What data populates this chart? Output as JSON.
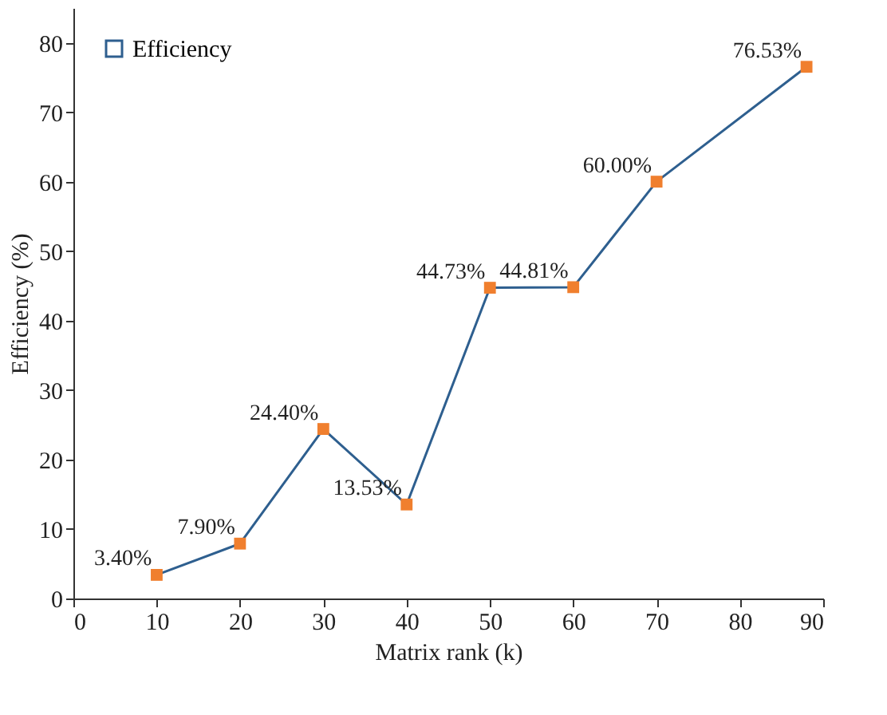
{
  "chart_data": {
    "type": "line",
    "xlabel": "Matrix rank (k)",
    "ylabel": "Efficiency (%)",
    "x": [
      10,
      20,
      30,
      40,
      50,
      60,
      70,
      88
    ],
    "series": [
      {
        "name": "Efficiency",
        "color": "#2e5f8f",
        "colors": [
          "#f07f2e",
          "#f07f2e",
          "#f07f2e",
          "#f07f2e",
          "#f07f2e",
          "#f07f2e",
          "#f07f2e",
          "#f07f2e"
        ],
        "values": [
          3.4,
          7.9,
          24.4,
          13.53,
          44.73,
          44.81,
          60,
          76.53
        ],
        "value_labels": [
          "3.40%",
          "7.90%",
          "24.40%",
          "13.53%",
          "44.73%",
          "44.81%",
          "60.00%",
          "76.53%"
        ]
      }
    ],
    "xlim": [
      0,
      90
    ],
    "ylim": [
      0,
      85
    ],
    "xticks": [
      0,
      10,
      20,
      30,
      40,
      50,
      60,
      70,
      80,
      90
    ],
    "yticks": [
      0,
      10,
      20,
      30,
      40,
      50,
      60,
      70,
      80
    ],
    "grid": false,
    "legend": "top left",
    "marker": "square",
    "line_style": "solid"
  }
}
